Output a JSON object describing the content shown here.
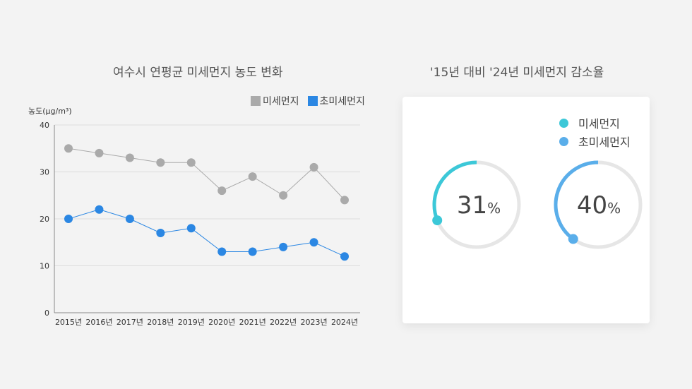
{
  "left_title": "여수시 연평균 미세먼지 농도 변화",
  "right_title": "'15년 대비 '24년 미세먼지 감소율",
  "legend": [
    {
      "label": "미세먼지",
      "color": "#aaaaaa"
    },
    {
      "label": "초미세먼지",
      "color": "#2b87e3"
    }
  ],
  "chart_data": [
    {
      "type": "line",
      "categories": [
        "2015년",
        "2016년",
        "2017년",
        "2018년",
        "2019년",
        "2020년",
        "2021년",
        "2022년",
        "2023년",
        "2024년"
      ],
      "ylabel": "농도(μg/m³)",
      "ylim": [
        0,
        40
      ],
      "yticks": [
        0,
        10,
        20,
        30,
        40
      ],
      "grid": true,
      "legend_position": "top-right",
      "series": [
        {
          "name": "미세먼지",
          "color": "#aaaaaa",
          "values": [
            35,
            34,
            33,
            32,
            32,
            26,
            29,
            25,
            31,
            24
          ]
        },
        {
          "name": "초미세먼지",
          "color": "#2b87e3",
          "values": [
            20,
            22,
            20,
            17,
            18,
            13,
            13,
            14,
            15,
            12
          ]
        }
      ]
    },
    {
      "type": "pie",
      "title": "'15년 대비 '24년 미세먼지 감소율",
      "legend_position": "top-right",
      "series": [
        {
          "name": "미세먼지",
          "value": 31,
          "color": "#3cc8d8"
        },
        {
          "name": "초미세먼지",
          "value": 40,
          "color": "#5aaeea"
        }
      ],
      "unit": "%"
    }
  ],
  "donut_labels": [
    {
      "value": "31",
      "unit": "%"
    },
    {
      "value": "40",
      "unit": "%"
    }
  ]
}
